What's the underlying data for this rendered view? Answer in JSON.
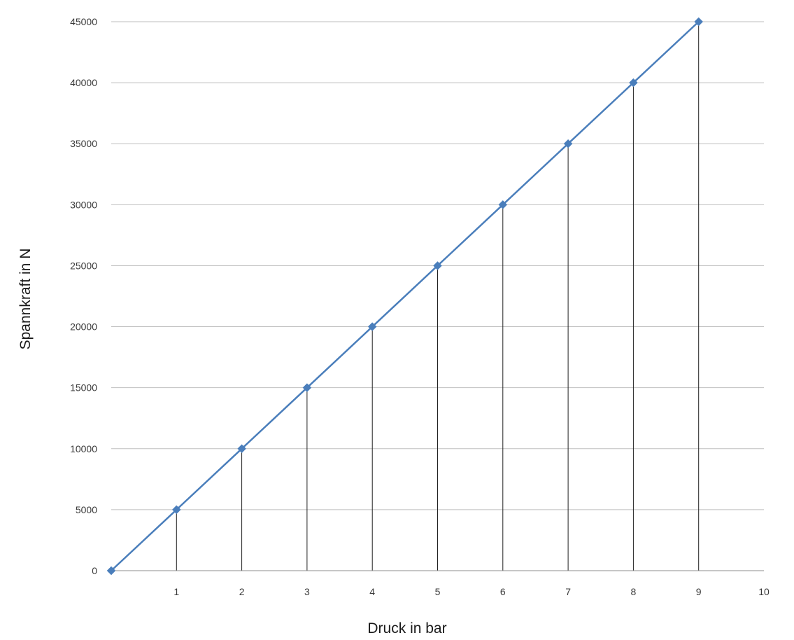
{
  "chart_data": {
    "type": "line",
    "title": "",
    "xlabel": "Druck in bar",
    "ylabel": "Spannkraft in N",
    "xlim": [
      0,
      10
    ],
    "ylim": [
      0,
      45000
    ],
    "x_ticks": [
      "1",
      "2",
      "3",
      "4",
      "5",
      "6",
      "7",
      "8",
      "9",
      "10"
    ],
    "y_ticks": [
      "0",
      "5000",
      "10000",
      "15000",
      "20000",
      "25000",
      "30000",
      "35000",
      "40000",
      "45000"
    ],
    "grid": "horizontal",
    "drop_lines": true,
    "legend": "none",
    "series": [
      {
        "x": [
          0,
          1,
          2,
          3,
          4,
          5,
          6,
          7,
          8,
          9
        ],
        "values": [
          0,
          5000,
          10000,
          15000,
          20000,
          25000,
          30000,
          35000,
          40000,
          45000
        ],
        "color": "#4a7ebb",
        "marker": "diamond"
      }
    ]
  }
}
